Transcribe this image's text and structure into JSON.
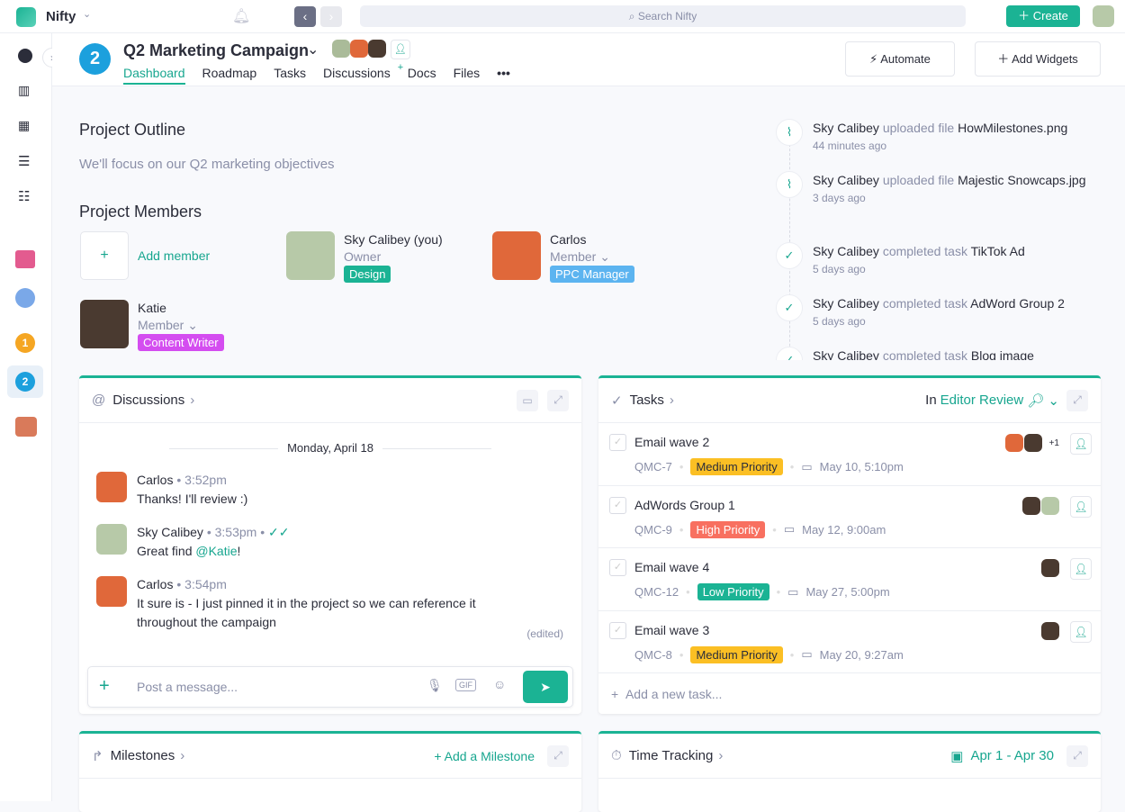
{
  "topbar": {
    "app": "Nifty",
    "search_placeholder": "Search Nifty",
    "create": "Create"
  },
  "project": {
    "badge": "2",
    "title": "Q2 Marketing Campaign",
    "tabs": [
      "Dashboard",
      "Roadmap",
      "Tasks",
      "Discussions",
      "Docs",
      "Files"
    ],
    "more": "•••",
    "automate": "Automate",
    "add_widgets": "Add Widgets"
  },
  "outline": {
    "title": "Project Outline",
    "text": "We'll focus on our Q2 marketing objectives"
  },
  "members": {
    "title": "Project Members",
    "add": "Add member",
    "list": [
      {
        "name": "Sky Calibey (you)",
        "role": "Owner",
        "tag": "Design",
        "tag_color": "#1bb394"
      },
      {
        "name": "Carlos",
        "role": "Member",
        "tag": "PPC Manager",
        "tag_color": "#5cb4f0"
      },
      {
        "name": "Katie",
        "role": "Member",
        "tag": "Content Writer",
        "tag_color": "#d44df0"
      }
    ]
  },
  "activity": [
    {
      "user": "Sky Calibey",
      "action": "uploaded file",
      "object": "HowMilestones.png",
      "time": "44 minutes ago",
      "icon": "paperclip"
    },
    {
      "user": "Sky Calibey",
      "action": "uploaded file",
      "object": "Majestic Snowcaps.jpg",
      "time": "3 days ago",
      "icon": "paperclip"
    },
    {
      "user": "Sky Calibey",
      "action": "completed task",
      "object": "TikTok Ad",
      "time": "5 days ago",
      "icon": "check"
    },
    {
      "user": "Sky Calibey",
      "action": "completed task",
      "object": "AdWord Group 2",
      "time": "5 days ago",
      "icon": "check"
    },
    {
      "user": "Sky Calibey",
      "action": "completed task",
      "object": "Blog image",
      "time": "",
      "icon": "check"
    }
  ],
  "discussions": {
    "title": "Discussions",
    "date": "Monday, April 18",
    "messages": [
      {
        "user": "Carlos",
        "time": "3:52pm",
        "text": "Thanks! I'll review :)"
      },
      {
        "user": "Sky Calibey",
        "time": "3:53pm",
        "text": "Great find ",
        "mention": "@Katie",
        "after": "!"
      },
      {
        "user": "Carlos",
        "time": "3:54pm",
        "text": "It sure is - I just pinned it in the project so we can reference it throughout the campaign",
        "edited": "(edited)"
      }
    ],
    "placeholder": "Post a message...",
    "gif": "GIF"
  },
  "tasks": {
    "title": "Tasks",
    "in": "In",
    "filter": "Editor Review",
    "add": "Add a new task...",
    "items": [
      {
        "name": "Email wave 2",
        "id": "QMC-7",
        "priority": "Medium Priority",
        "pcolor": "#fbbf24",
        "ptext": "#2b2d3a",
        "date": "May 10, 5:10pm",
        "extra": "+1"
      },
      {
        "name": "AdWords Group 1",
        "id": "QMC-9",
        "priority": "High Priority",
        "pcolor": "#f87060",
        "ptext": "#ffffff",
        "date": "May 12, 9:00am",
        "extra": ""
      },
      {
        "name": "Email wave 4",
        "id": "QMC-12",
        "priority": "Low Priority",
        "pcolor": "#1bb394",
        "ptext": "#ffffff",
        "date": "May 27, 5:00pm",
        "extra": ""
      },
      {
        "name": "Email wave 3",
        "id": "QMC-8",
        "priority": "Medium Priority",
        "pcolor": "#fbbf24",
        "ptext": "#2b2d3a",
        "date": "May 20, 9:27am",
        "extra": ""
      }
    ]
  },
  "milestones": {
    "title": "Milestones",
    "add": "+ Add a Milestone"
  },
  "time_tracking": {
    "title": "Time Tracking",
    "range": "Apr 1 - Apr 30"
  }
}
